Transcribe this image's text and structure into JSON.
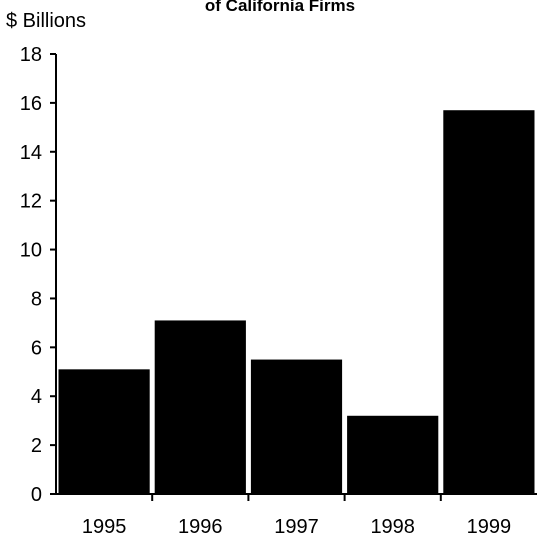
{
  "chart_data": {
    "type": "bar",
    "title": "of California Firms",
    "ylabel": "$ Billions",
    "xlabel": "",
    "categories": [
      "1995",
      "1996",
      "1997",
      "1998",
      "1999"
    ],
    "values": [
      5.1,
      7.1,
      5.5,
      3.2,
      15.7
    ],
    "ylim": [
      0,
      18
    ],
    "yticks": [
      0,
      2,
      4,
      6,
      8,
      10,
      12,
      14,
      16,
      18
    ],
    "grid": false,
    "bar_color": "#000000"
  }
}
